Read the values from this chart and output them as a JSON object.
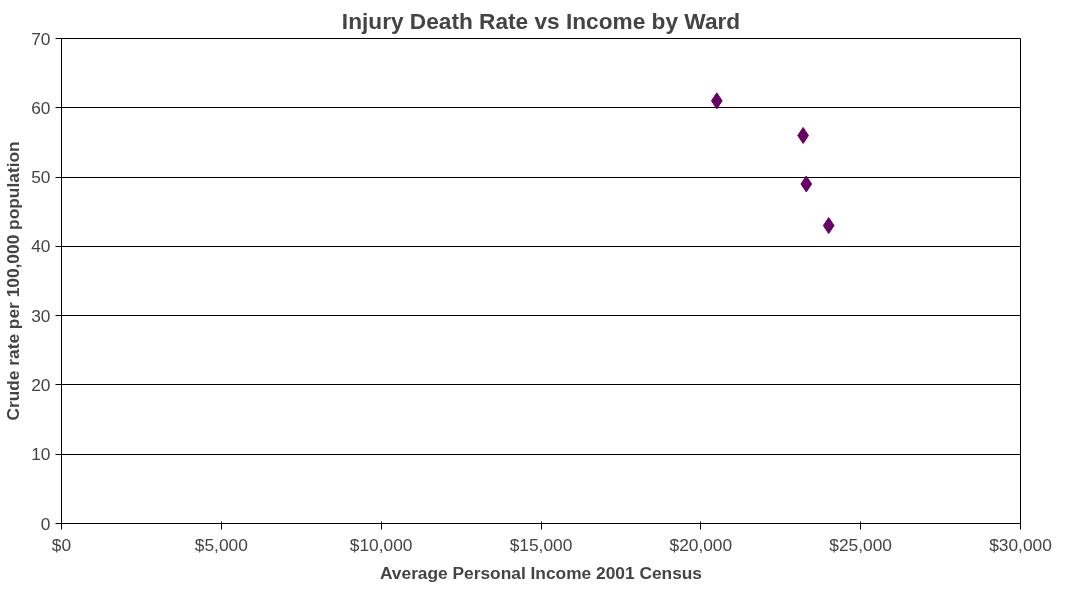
{
  "chart_data": {
    "type": "scatter",
    "title": "Injury Death Rate vs Income by Ward",
    "xlabel": "Average Personal Income 2001 Census",
    "ylabel": "Crude rate per 100,000 population",
    "x": [
      20500,
      23200,
      23300,
      24000
    ],
    "series": [
      {
        "color": "#660066",
        "values": [
          61,
          56,
          49,
          43
        ]
      }
    ],
    "marker": "diamond",
    "xlim": [
      0,
      30000
    ],
    "xticks": [
      {
        "value": 0,
        "label": "$0"
      },
      {
        "value": 5000,
        "label": "$5,000"
      },
      {
        "value": 10000,
        "label": "$10,000"
      },
      {
        "value": 15000,
        "label": "$15,000"
      },
      {
        "value": 20000,
        "label": "$20,000"
      },
      {
        "value": 25000,
        "label": "$25,000"
      },
      {
        "value": 30000,
        "label": "$30,000"
      }
    ],
    "ylim": [
      0,
      70
    ],
    "yticks": [
      0,
      10,
      20,
      30,
      40,
      50,
      60,
      70
    ],
    "grid": "y"
  }
}
